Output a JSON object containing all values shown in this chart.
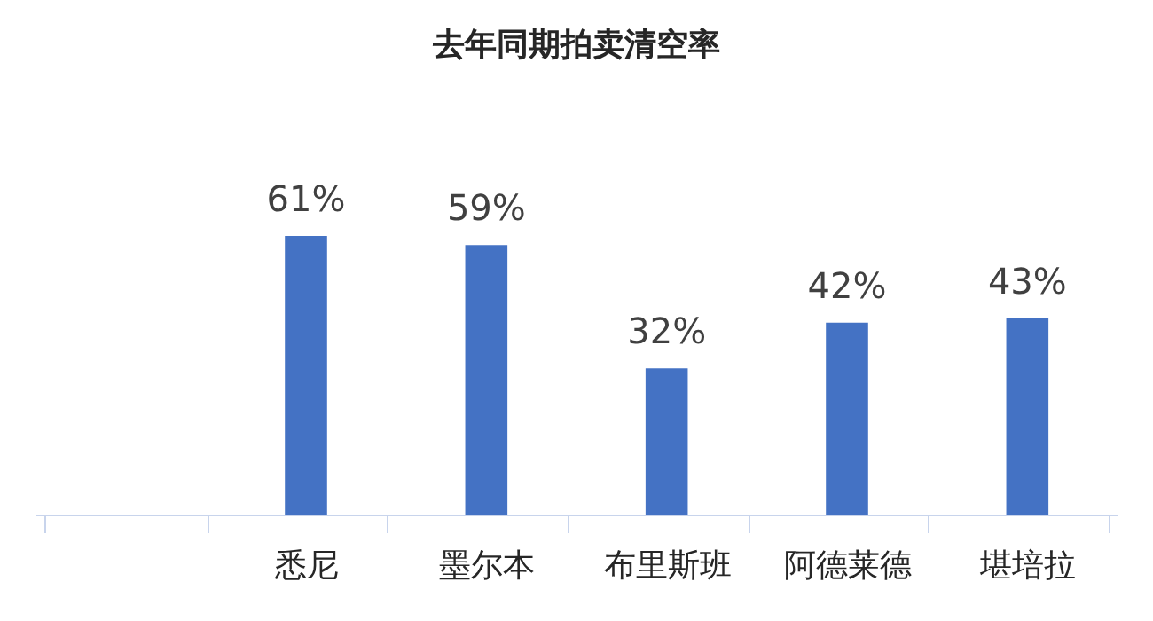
{
  "chart_data": {
    "type": "bar",
    "title": "去年同期拍卖清空率",
    "categories": [
      null,
      "悉尼",
      "墨尔本",
      "布里斯班",
      "阿德莱德",
      "堪培拉"
    ],
    "values": [
      null,
      61,
      59,
      32,
      42,
      43
    ],
    "value_labels": [
      null,
      "61%",
      "59%",
      "32%",
      "42%",
      "43%"
    ],
    "color": "#4472c4"
  }
}
